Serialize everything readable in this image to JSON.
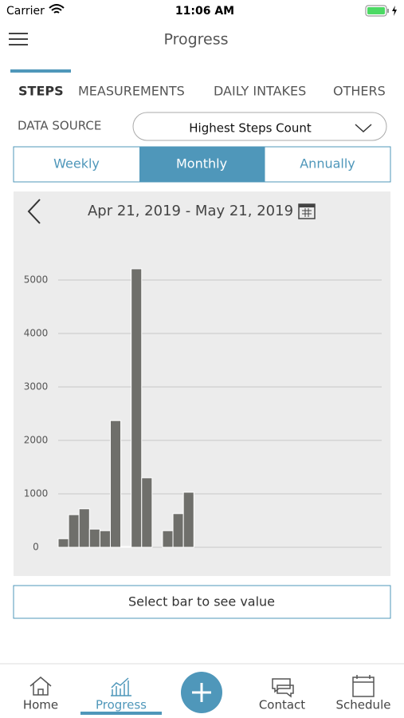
{
  "status_bar": {
    "carrier": "Carrier",
    "time": "11:06 AM"
  },
  "header": {
    "title": "Progress"
  },
  "tabs": [
    "STEPS",
    "MEASUREMENTS",
    "DAILY INTAKES",
    "OTHERS"
  ],
  "data_source": {
    "label": "DATA SOURCE",
    "value": "Highest Steps Count"
  },
  "periods": [
    "Weekly",
    "Monthly",
    "Annually"
  ],
  "date_range": "Apr 21, 2019 - May 21, 2019",
  "chart_data": {
    "type": "bar",
    "categories": [
      null,
      null,
      null,
      null,
      null,
      null,
      null,
      null,
      null,
      null,
      null,
      null,
      null,
      null,
      null,
      null,
      null,
      null,
      null,
      null,
      null,
      null,
      null,
      null,
      null,
      null,
      null,
      null,
      null,
      null,
      null
    ],
    "values": [
      160,
      610,
      720,
      340,
      310,
      2370,
      15,
      5210,
      1300,
      0,
      310,
      630,
      1030,
      0,
      0,
      0,
      0,
      0,
      0,
      0,
      0,
      0,
      0,
      0,
      0,
      0,
      0,
      0,
      0,
      0,
      0
    ],
    "color": "#6f6f6b",
    "ylim": [
      0,
      5800
    ],
    "yticks": [
      0,
      1000,
      2000,
      3000,
      4000,
      5000
    ],
    "grid": true
  },
  "hint": "Select bar to see value",
  "nav": [
    "Home",
    "Progress",
    "Contact",
    "Schedule"
  ]
}
